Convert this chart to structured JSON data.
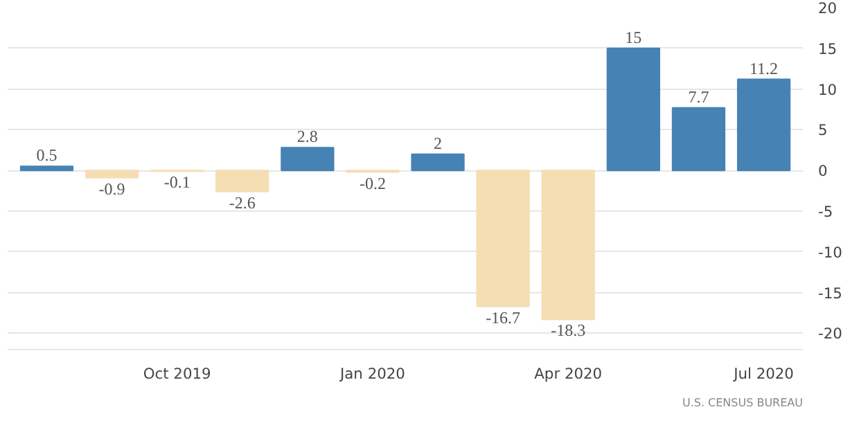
{
  "chart_data": {
    "type": "bar",
    "categories": [
      null,
      null,
      "Oct 2019",
      null,
      null,
      "Jan 2020",
      null,
      null,
      "Apr 2020",
      null,
      null,
      "Jul 2020"
    ],
    "values": [
      0.5,
      -0.9,
      -0.1,
      -2.6,
      2.8,
      -0.2,
      2,
      -16.7,
      -18.3,
      15,
      7.7,
      11.2
    ],
    "colors": [
      "#4682b4",
      "#f5deb3",
      "#f5deb3",
      "#f5deb3",
      "#4682b4",
      "#f5deb3",
      "#4682b4",
      "#f5deb3",
      "#f5deb3",
      "#4682b4",
      "#4682b4",
      "#4682b4"
    ],
    "ylim": [
      -22,
      20
    ],
    "yticks": [
      -20,
      -15,
      -10,
      -5,
      0,
      5,
      10,
      15,
      20
    ],
    "grid": "y",
    "data_labels": true,
    "annotations": [
      "U.S. CENSUS BUREAU"
    ]
  }
}
